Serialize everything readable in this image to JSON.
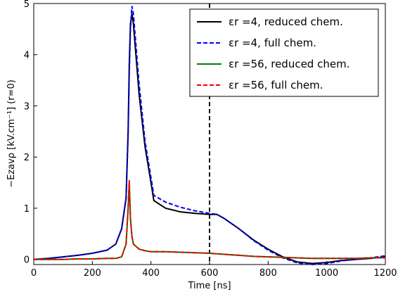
{
  "chart_data": {
    "type": "line",
    "xlabel": "Time [ns]",
    "ylabel": "−Ezavρ [kV.cm⁻¹] (r=0)",
    "x": [
      0,
      50,
      100,
      150,
      200,
      250,
      280,
      300,
      315,
      322,
      326,
      330,
      335,
      340,
      360,
      380,
      400,
      410,
      450,
      500,
      550,
      600,
      625,
      650,
      700,
      750,
      800,
      850,
      900,
      950,
      1000,
      1050,
      1100,
      1150,
      1200
    ],
    "series": [
      {
        "name": "εr =4, reduced chem.",
        "color": "#000000",
        "dash": false,
        "values": [
          0,
          0.02,
          0.05,
          0.08,
          0.12,
          0.18,
          0.3,
          0.6,
          1.2,
          2.5,
          3.8,
          4.6,
          4.8,
          4.6,
          3.2,
          2.2,
          1.5,
          1.15,
          1.0,
          0.93,
          0.9,
          0.88,
          0.88,
          0.8,
          0.6,
          0.38,
          0.2,
          0.05,
          -0.05,
          -0.08,
          -0.06,
          -0.02,
          0,
          0.02,
          0.05
        ]
      },
      {
        "name": "εr =4, full chem.",
        "color": "#0000ee",
        "dash": true,
        "values": [
          0,
          0.02,
          0.05,
          0.08,
          0.12,
          0.18,
          0.3,
          0.6,
          1.2,
          2.4,
          3.6,
          4.5,
          4.95,
          4.8,
          3.4,
          2.3,
          1.6,
          1.25,
          1.12,
          1.02,
          0.95,
          0.9,
          0.88,
          0.8,
          0.6,
          0.37,
          0.18,
          0.03,
          -0.07,
          -0.1,
          -0.08,
          -0.03,
          0,
          0.03,
          0.07
        ]
      },
      {
        "name": "εr =56, reduced chem.",
        "color": "#008000",
        "dash": false,
        "values": [
          0,
          0,
          0,
          0.01,
          0.01,
          0.02,
          0.02,
          0.05,
          0.3,
          1.0,
          1.5,
          0.8,
          0.45,
          0.3,
          0.2,
          0.17,
          0.15,
          0.15,
          0.15,
          0.14,
          0.13,
          0.12,
          0.11,
          0.1,
          0.08,
          0.06,
          0.05,
          0.04,
          0.03,
          0.02,
          0.02,
          0.02,
          0.02,
          0.03,
          0.03
        ]
      },
      {
        "name": "εr =56, full chem.",
        "color": "#ee0000",
        "dash": true,
        "values": [
          0,
          0,
          0,
          0.01,
          0.01,
          0.02,
          0.02,
          0.05,
          0.3,
          1.0,
          1.55,
          0.8,
          0.45,
          0.3,
          0.2,
          0.17,
          0.15,
          0.15,
          0.15,
          0.14,
          0.13,
          0.12,
          0.11,
          0.1,
          0.08,
          0.06,
          0.05,
          0.04,
          0.03,
          0.02,
          0.02,
          0.02,
          0.02,
          0.03,
          0.03
        ]
      }
    ],
    "xlim": [
      0,
      1200
    ],
    "xticks": [
      0,
      200,
      400,
      600,
      800,
      1000,
      1200
    ],
    "ylim": [
      -0.1,
      5
    ],
    "yticks": [
      0,
      1,
      2,
      3,
      4,
      5
    ],
    "vline": 600,
    "legend": "upper right"
  }
}
